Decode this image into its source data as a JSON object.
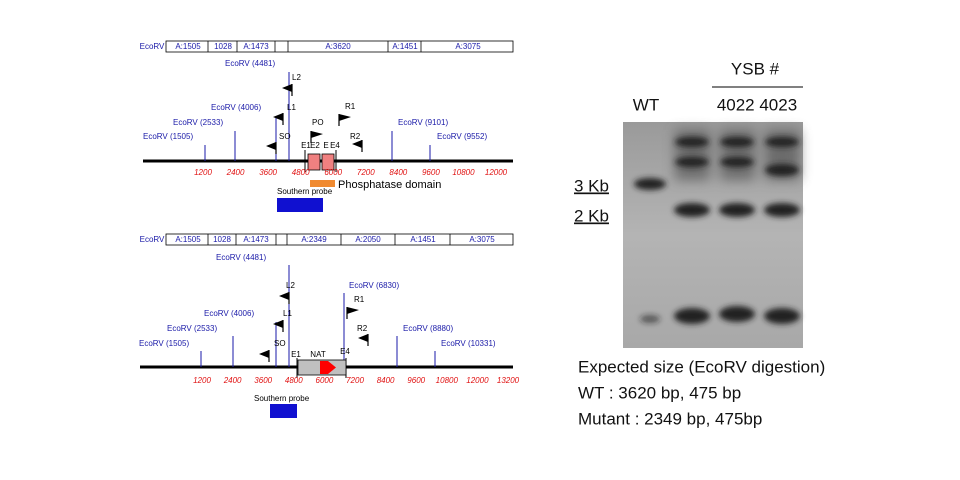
{
  "maps": [
    {
      "fragments": [
        "EcoRV",
        "A:1505",
        "1028",
        "A:1473",
        "A:3620",
        "A:1451",
        "A:3075"
      ],
      "sites": [
        "EcoRV (4481)",
        "EcoRV (4006)",
        "EcoRV (2533)",
        "EcoRV (1505)",
        "EcoRV (9101)",
        "EcoRV (9552)"
      ],
      "primers": [
        "L2",
        "L1",
        "SO",
        "PO",
        "R1",
        "R2"
      ],
      "exons": [
        "E1",
        "E2",
        "E",
        "E4"
      ],
      "axis_ticks": [
        1200,
        2400,
        3600,
        4800,
        6000,
        7200,
        8400,
        9600,
        10800,
        12000
      ],
      "domain": "Phosphatase domain",
      "probe": "Southern probe"
    },
    {
      "fragments": [
        "EcoRV",
        "A:1505",
        "1028",
        "A:1473",
        "A:2349",
        "A:2050",
        "A:1451",
        "A:3075"
      ],
      "sites": [
        "EcoRV (4481)",
        "EcoRV (4006)",
        "EcoRV (2533)",
        "EcoRV (1505)",
        "EcoRV (6830)",
        "EcoRV (8880)",
        "EcoRV (10331)"
      ],
      "primers": [
        "L2",
        "L1",
        "SO",
        "R1",
        "R2"
      ],
      "exons": [
        "E1",
        "NAT",
        "E4"
      ],
      "axis_ticks": [
        1200,
        2400,
        3600,
        4800,
        6000,
        7200,
        8400,
        9600,
        10800,
        12000,
        13200
      ],
      "probe": "Southern probe"
    }
  ],
  "gel": {
    "header": "YSB #",
    "lanes": [
      "WT",
      "4022 4023"
    ],
    "markers": [
      "3 Kb",
      "2 Kb"
    ]
  },
  "notes": [
    "Expected size (EcoRV digestion)",
    "WT : 3620 bp, 475 bp",
    "Mutant : 2349 bp, 475bp"
  ]
}
